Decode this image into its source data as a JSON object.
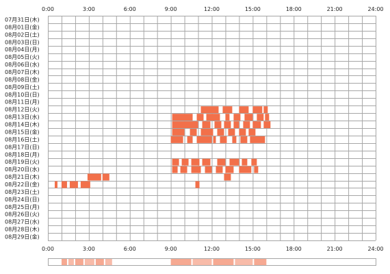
{
  "chart_data": {
    "type": "heatmap",
    "x_ticks": [
      "0:00",
      "3:00",
      "6:00",
      "9:00",
      "12:00",
      "15:00",
      "18:00",
      "21:00",
      "24:00"
    ],
    "x_range_hours": [
      0,
      24
    ],
    "grid": true,
    "bar_color": "#f2704a",
    "grid_color": "#a6a6a6",
    "days": [
      {
        "label": "07月31日(木)",
        "intervals": []
      },
      {
        "label": "08月01日(金)",
        "intervals": []
      },
      {
        "label": "08月02日(土)",
        "intervals": []
      },
      {
        "label": "08月03日(日)",
        "intervals": []
      },
      {
        "label": "08月04日(月)",
        "intervals": []
      },
      {
        "label": "08月05日(火)",
        "intervals": []
      },
      {
        "label": "08月06日(水)",
        "intervals": []
      },
      {
        "label": "08月07日(木)",
        "intervals": []
      },
      {
        "label": "08月08日(金)",
        "intervals": []
      },
      {
        "label": "08月09日(土)",
        "intervals": []
      },
      {
        "label": "08月10日(日)",
        "intervals": []
      },
      {
        "label": "08月11日(月)",
        "intervals": []
      },
      {
        "label": "08月12日(火)",
        "intervals": [
          [
            11.2,
            12.5
          ],
          [
            12.8,
            13.5
          ],
          [
            14.0,
            14.7
          ],
          [
            15.0,
            15.7
          ],
          [
            15.8,
            16.1
          ]
        ]
      },
      {
        "label": "08月13日(水)",
        "intervals": [
          [
            9.1,
            10.6
          ],
          [
            10.9,
            11.4
          ],
          [
            11.6,
            12.6
          ],
          [
            13.0,
            13.3
          ],
          [
            13.6,
            14.1
          ],
          [
            14.4,
            15.0
          ],
          [
            15.3,
            15.8
          ],
          [
            15.9,
            16.2
          ]
        ]
      },
      {
        "label": "08月14日(木)",
        "intervals": [
          [
            9.1,
            11.0
          ],
          [
            11.3,
            11.9
          ],
          [
            12.2,
            12.7
          ],
          [
            12.9,
            13.4
          ],
          [
            13.6,
            14.0
          ],
          [
            14.3,
            14.8
          ],
          [
            15.0,
            15.6
          ],
          [
            15.8,
            16.3
          ]
        ]
      },
      {
        "label": "08月15日(金)",
        "intervals": [
          [
            9.1,
            10.0
          ],
          [
            10.4,
            10.9
          ],
          [
            11.2,
            12.1
          ],
          [
            12.4,
            12.9
          ],
          [
            13.2,
            13.7
          ],
          [
            14.0,
            14.5
          ],
          [
            14.7,
            15.2
          ]
        ]
      },
      {
        "label": "08月16日(土)",
        "intervals": [
          [
            9.0,
            9.9
          ],
          [
            10.2,
            10.6
          ],
          [
            10.9,
            12.0
          ],
          [
            12.1,
            12.3
          ],
          [
            12.6,
            13.1
          ],
          [
            13.5,
            13.8
          ],
          [
            14.1,
            14.6
          ],
          [
            14.8,
            15.9
          ]
        ]
      },
      {
        "label": "08月17日(日)",
        "intervals": []
      },
      {
        "label": "08月18日(月)",
        "intervals": []
      },
      {
        "label": "08月19日(火)",
        "intervals": [
          [
            9.1,
            9.6
          ],
          [
            9.8,
            10.3
          ],
          [
            10.5,
            11.1
          ],
          [
            11.3,
            11.9
          ],
          [
            12.4,
            13.0
          ],
          [
            13.3,
            14.0
          ],
          [
            14.2,
            14.6
          ],
          [
            14.9,
            15.3
          ]
        ]
      },
      {
        "label": "08月20日(水)",
        "intervals": [
          [
            9.1,
            9.5
          ],
          [
            9.7,
            10.2
          ],
          [
            10.5,
            11.2
          ],
          [
            11.5,
            12.0
          ],
          [
            12.3,
            12.8
          ],
          [
            13.0,
            13.6
          ],
          [
            14.0,
            14.9
          ],
          [
            15.1,
            15.4
          ]
        ]
      },
      {
        "label": "08月21日(木)",
        "intervals": [
          [
            2.9,
            3.9
          ],
          [
            4.0,
            4.5
          ],
          [
            12.9,
            13.4
          ]
        ]
      },
      {
        "label": "08月22日(金)",
        "intervals": [
          [
            0.5,
            0.7
          ],
          [
            1.0,
            1.4
          ],
          [
            1.6,
            2.2
          ],
          [
            2.4,
            3.1
          ],
          [
            10.8,
            11.1
          ]
        ]
      },
      {
        "label": "08月23日(土)",
        "intervals": []
      },
      {
        "label": "08月24日(日)",
        "intervals": []
      },
      {
        "label": "08月25日(月)",
        "intervals": []
      },
      {
        "label": "08月26日(火)",
        "intervals": []
      },
      {
        "label": "08月27日(水)",
        "intervals": []
      },
      {
        "label": "08月28日(木)",
        "intervals": []
      },
      {
        "label": "08月29日(金)",
        "intervals": []
      }
    ],
    "summary_bar": {
      "color": "#f6a48c",
      "bands": [
        [
          1.0,
          1.4
        ],
        [
          1.5,
          1.9
        ],
        [
          2.0,
          2.6
        ],
        [
          2.7,
          3.4
        ],
        [
          3.5,
          4.1
        ],
        [
          4.2,
          4.7
        ],
        [
          9.0,
          10.5
        ],
        [
          10.6,
          12.0
        ],
        [
          12.1,
          13.6
        ],
        [
          13.7,
          15.0
        ],
        [
          15.1,
          16.0
        ]
      ]
    }
  }
}
